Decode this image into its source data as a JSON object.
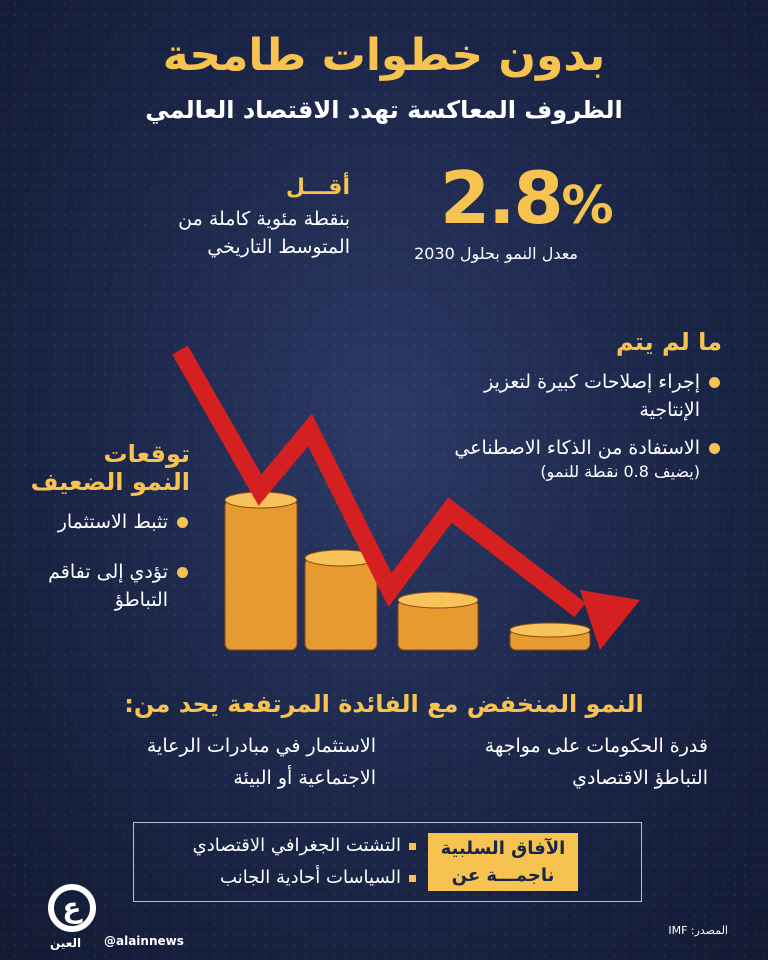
{
  "header": {
    "title": "بدون خطوات طامحة",
    "subtitle": "الظروف المعاكسة تهدد الاقتصاد العالمي"
  },
  "stat": {
    "value": "2.8",
    "unit": "%",
    "caption": "معدل النمو بحلول 2030",
    "less_title": "أقـــل",
    "less_desc": [
      "بنقطة مئوية كاملة من",
      "المتوسط التاريخي"
    ]
  },
  "unless": {
    "heading": "ما لم يتم",
    "items": [
      "إجراء إصلاحات كبيرة لتعزيز الإنتاجية",
      "الاستفادة من الذكاء الاصطناعي"
    ],
    "note": "(يضيف 0.8 نقطة للنمو)"
  },
  "forecasts": {
    "heading": [
      "توقعات",
      "النمو الضعيف"
    ],
    "items": [
      "تثبط الاستثمار",
      "تؤدي إلى تفاقم التباطؤ"
    ]
  },
  "limits": {
    "heading": "النمو المنخفض مع الفائدة المرتفعة يحد من:",
    "items": [
      [
        "قدرة الحكومات على مواجهة",
        "التباطؤ الاقتصادي"
      ],
      [
        "الاستثمار في مبادرات الرعاية",
        "الاجتماعية أو البيئة"
      ]
    ]
  },
  "outlook": {
    "label": [
      "الآفاق السلبية",
      "ناجمـــة عن"
    ],
    "items": [
      "التشتت الجغرافي الاقتصادي",
      "السياسات أحادية الجانب"
    ]
  },
  "footer": {
    "source": "المصدر: IMF",
    "handle": "@alainnews",
    "logo": "العين الإخبارية"
  },
  "colors": {
    "accent": "#f6c350",
    "background": "#1b2547",
    "arrow": "#d42020"
  }
}
